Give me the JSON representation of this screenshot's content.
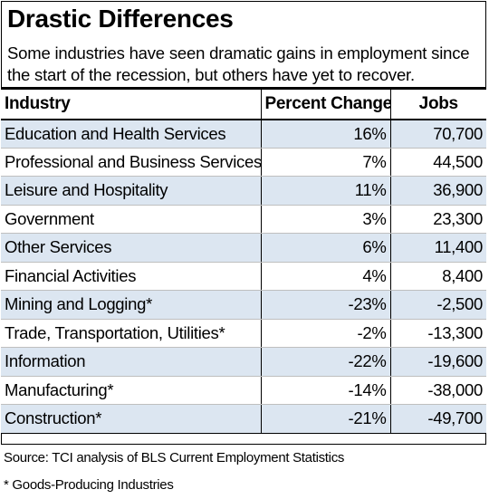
{
  "chart_data": {
    "type": "table",
    "title": "Drastic Differences",
    "subtitle": "Some industries have seen dramatic gains in employment since the start of the recession, but others have yet to recover.",
    "columns": [
      "Industry",
      "Percent Change",
      "Jobs"
    ],
    "rows": [
      {
        "industry": "Education and Health Services",
        "percent_change": "16%",
        "jobs": "70,700"
      },
      {
        "industry": "Professional and Business Services",
        "percent_change": "7%",
        "jobs": "44,500"
      },
      {
        "industry": "Leisure and Hospitality",
        "percent_change": "11%",
        "jobs": "36,900"
      },
      {
        "industry": "Government",
        "percent_change": "3%",
        "jobs": "23,300"
      },
      {
        "industry": "Other Services",
        "percent_change": "6%",
        "jobs": "11,400"
      },
      {
        "industry": "Financial Activities",
        "percent_change": "4%",
        "jobs": "8,400"
      },
      {
        "industry": "Mining and Logging*",
        "percent_change": "-23%",
        "jobs": "-2,500"
      },
      {
        "industry": "Trade, Transportation, Utilities*",
        "percent_change": "-2%",
        "jobs": "-13,300"
      },
      {
        "industry": "Information",
        "percent_change": "-22%",
        "jobs": "-19,600"
      },
      {
        "industry": "Manufacturing*",
        "percent_change": "-14%",
        "jobs": "-38,000"
      },
      {
        "industry": "Construction*",
        "percent_change": "-21%",
        "jobs": "-49,700"
      }
    ],
    "source": "Source: TCI analysis of BLS Current Employment Statistics",
    "footnote": "* Goods-Producing Industries",
    "colors": {
      "band": "#dce6f1",
      "header_rule": "#000000",
      "row_rule": "#bfbfbf"
    }
  }
}
